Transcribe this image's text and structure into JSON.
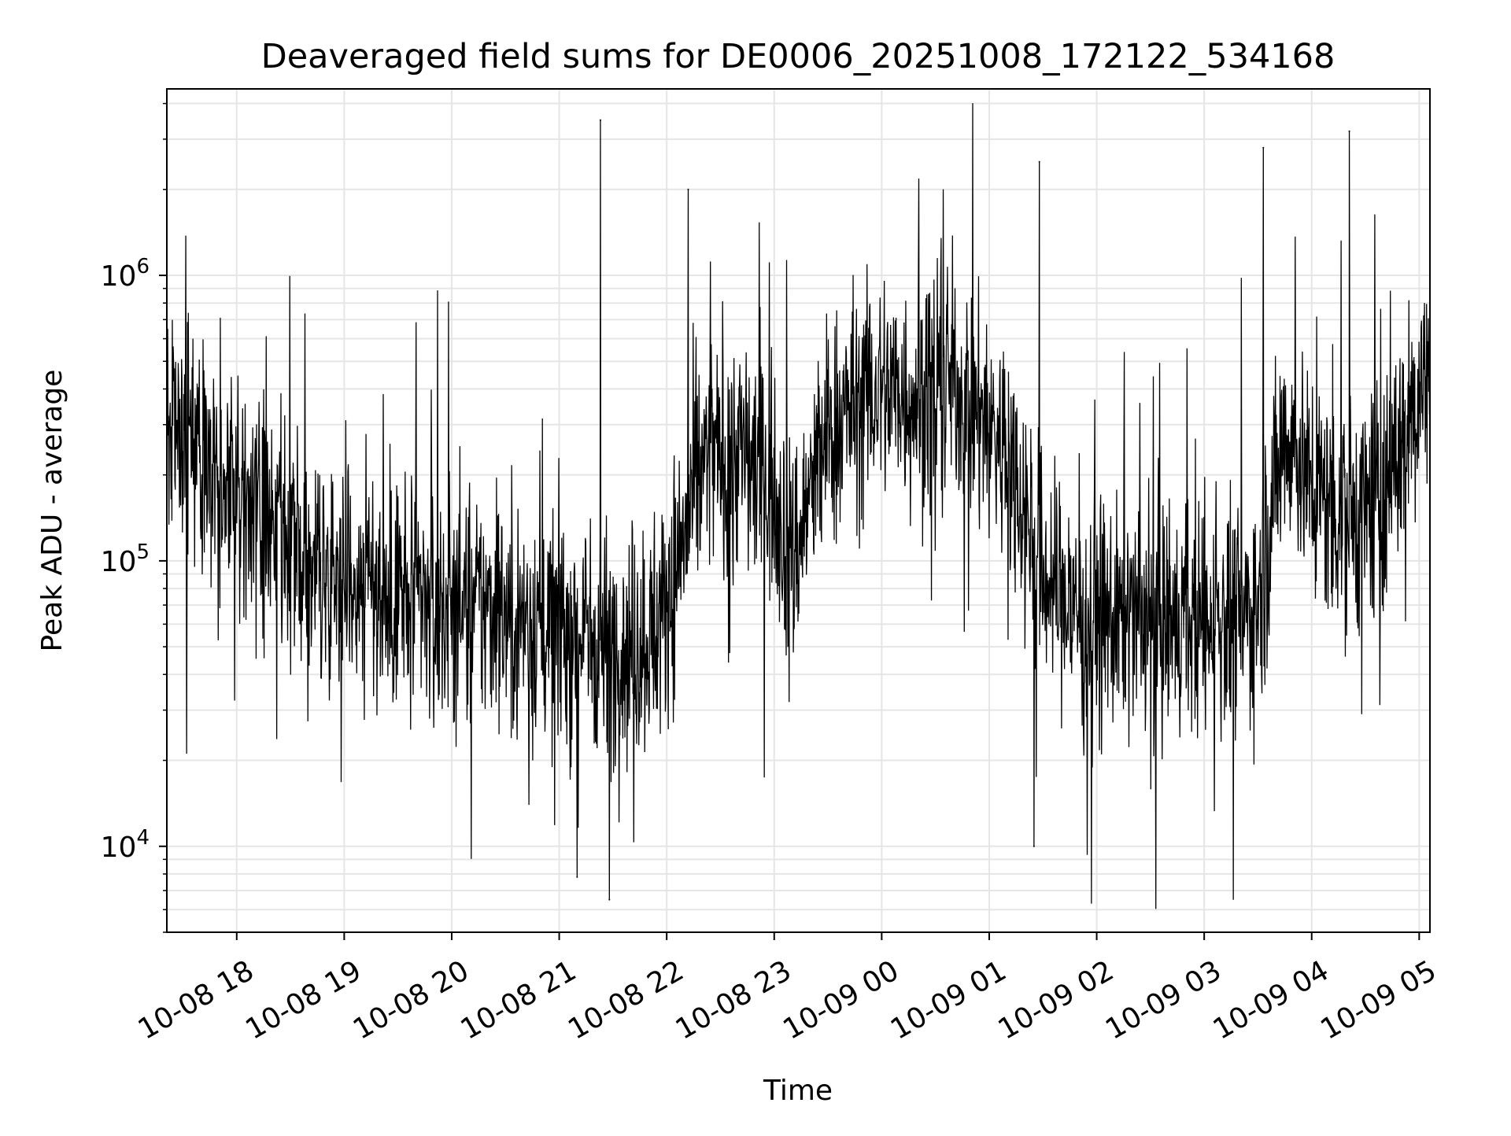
{
  "chart_data": {
    "type": "line",
    "title": "Deaveraged field sums for DE0006_20251008_172122_534168",
    "xlabel": "Time",
    "ylabel": "Peak ADU - average",
    "x_ticks": [
      "10-08 18",
      "10-08 19",
      "10-08 20",
      "10-08 21",
      "10-08 22",
      "10-08 23",
      "10-09 00",
      "10-09 01",
      "10-09 02",
      "10-09 03",
      "10-09 04",
      "10-09 05"
    ],
    "xlim": [
      "2025-10-08 17:21",
      "2025-10-09 05:06"
    ],
    "yscale": "log",
    "ylim": [
      5000,
      4500000
    ],
    "y_ticks": [
      {
        "base": "10",
        "exp": "4"
      },
      {
        "base": "10",
        "exp": "5"
      },
      {
        "base": "10",
        "exp": "6"
      }
    ],
    "grid": true,
    "line_color": "#000000",
    "grid_color": "#e5e5e5",
    "series": [
      {
        "x": [
          "2025-10-08 17:21",
          "2025-10-08 17:30",
          "2025-10-08 17:45",
          "2025-10-08 18:00",
          "2025-10-08 18:07",
          "2025-10-08 18:20",
          "2025-10-08 18:35",
          "2025-10-08 18:50",
          "2025-10-08 19:00",
          "2025-10-08 19:15",
          "2025-10-08 19:30",
          "2025-10-08 19:45",
          "2025-10-08 20:00",
          "2025-10-08 20:20",
          "2025-10-08 20:40",
          "2025-10-08 21:00",
          "2025-10-08 21:15",
          "2025-10-08 21:30",
          "2025-10-08 21:45",
          "2025-10-08 21:55",
          "2025-10-08 22:00",
          "2025-10-08 22:20",
          "2025-10-08 22:40",
          "2025-10-08 23:00",
          "2025-10-08 23:10",
          "2025-10-08 23:30",
          "2025-10-08 23:45",
          "2025-10-09 00:00",
          "2025-10-09 00:20",
          "2025-10-09 00:40",
          "2025-10-09 01:00",
          "2025-10-09 01:15",
          "2025-10-09 01:30",
          "2025-10-09 01:50",
          "2025-10-09 02:10",
          "2025-10-09 02:30",
          "2025-10-09 02:50",
          "2025-10-09 03:10",
          "2025-10-09 03:25",
          "2025-10-09 03:30",
          "2025-10-09 03:45",
          "2025-10-09 04:00",
          "2025-10-09 04:20",
          "2025-10-09 04:40",
          "2025-10-09 05:06"
        ],
        "values": [
          300000,
          260000,
          220000,
          180000,
          140000,
          120000,
          100000,
          90000,
          95000,
          85000,
          75000,
          70000,
          72000,
          68000,
          62000,
          58000,
          55000,
          50000,
          52000,
          60000,
          70000,
          220000,
          250000,
          180000,
          100000,
          280000,
          350000,
          400000,
          380000,
          420000,
          300000,
          200000,
          90000,
          65000,
          62000,
          60000,
          58000,
          62000,
          65000,
          70000,
          300000,
          180000,
          140000,
          170000,
          500000
        ],
        "notable_peaks": [
          {
            "x": "2025-10-08 21:23",
            "y": 3500000
          },
          {
            "x": "2025-10-08 22:12",
            "y": 2000000
          },
          {
            "x": "2025-10-09 01:28",
            "y": 2500000
          },
          {
            "x": "2025-10-09 03:33",
            "y": 2800000
          },
          {
            "x": "2025-10-09 04:21",
            "y": 3200000
          }
        ],
        "notable_minima": [
          {
            "x": "2025-10-08 21:28",
            "y": 6500
          },
          {
            "x": "2025-10-08 21:10",
            "y": 7800
          },
          {
            "x": "2025-10-09 01:25",
            "y": 10000
          }
        ]
      }
    ]
  }
}
